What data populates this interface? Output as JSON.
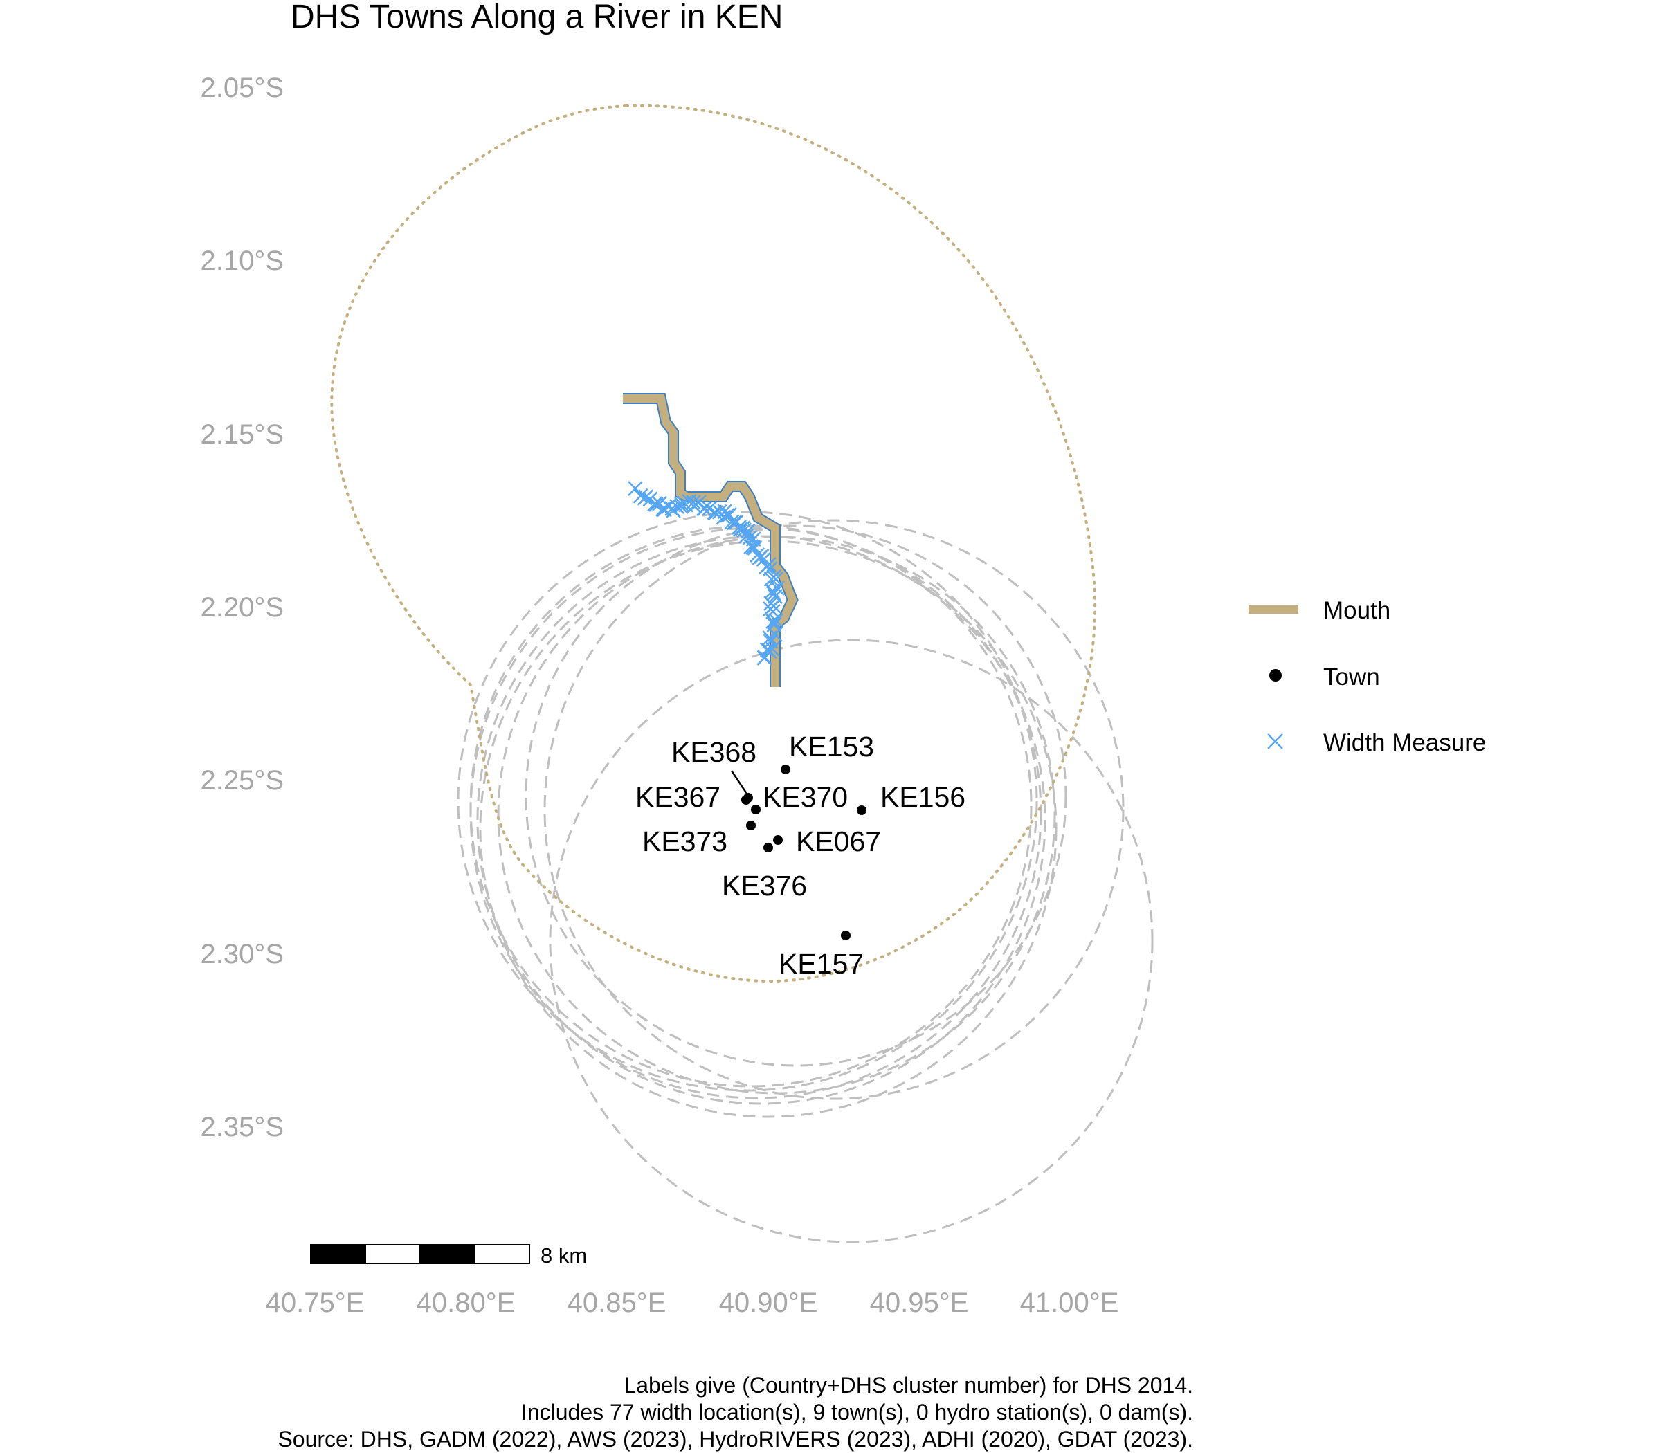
{
  "title": "DHS Towns Along a River in KEN",
  "axes": {
    "y_ticks": [
      "2.05°S",
      "2.10°S",
      "2.15°S",
      "2.20°S",
      "2.25°S",
      "2.30°S",
      "2.35°S"
    ],
    "x_ticks": [
      "40.75°E",
      "40.80°E",
      "40.85°E",
      "40.90°E",
      "40.95°E",
      "41.00°E"
    ]
  },
  "legend": {
    "placement": "right",
    "items": [
      {
        "label": "Mouth",
        "symbol": "thick-line",
        "color": "#c4b07e"
      },
      {
        "label": "Town",
        "symbol": "dot",
        "color": "#000000"
      },
      {
        "label": "Width Measure",
        "symbol": "x-mark",
        "color": "#56a6f2"
      }
    ]
  },
  "towns": [
    {
      "id": "KE368"
    },
    {
      "id": "KE153"
    },
    {
      "id": "KE367"
    },
    {
      "id": "KE370"
    },
    {
      "id": "KE156"
    },
    {
      "id": "KE373"
    },
    {
      "id": "KE067"
    },
    {
      "id": "KE376"
    },
    {
      "id": "KE157"
    }
  ],
  "scale_bar": {
    "label": "8 km"
  },
  "caption": [
    "Labels give (Country+DHS cluster number) for DHS 2014.",
    "Includes 77 width location(s), 9 town(s), 0 hydro station(s), 0 dam(s).",
    "Source: DHS, GADM (2022), AWS (2023), HydroRIVERS (2023), ADHI (2020), GDAT (2023)."
  ],
  "colors": {
    "river": "#c4b07e",
    "river_edge": "#3f7fc4",
    "width_measure": "#56a6f2",
    "buffer_dashed": "#bfbfbf",
    "buffer_dotted": "#c4b07e",
    "axis_text": "#a6a6a6"
  }
}
